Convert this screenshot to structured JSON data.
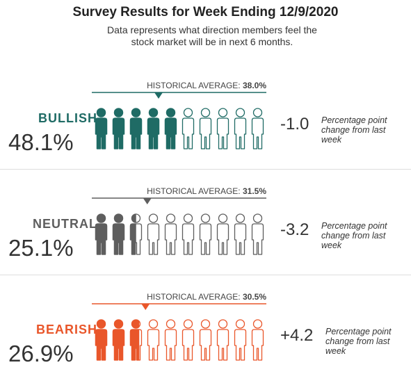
{
  "header": {
    "title": "Survey Results for Week Ending 12/9/2020",
    "subtitle": "Data represents what direction members feel the stock market will be in next 6 months."
  },
  "rows": [
    {
      "label": "BULLISH",
      "value": 48.1,
      "value_label": "48.1%",
      "color": "#1f6b65",
      "historical_label": "HISTORICAL AVERAGE:",
      "historical_average": 38.0,
      "historical_average_label": "38.0%",
      "change_label": "-1.0",
      "change_note": "Percentage point change from last week"
    },
    {
      "label": "NEUTRAL",
      "value": 25.1,
      "value_label": "25.1%",
      "color": "#5e5e5e",
      "historical_label": "HISTORICAL AVERAGE:",
      "historical_average": 31.5,
      "historical_average_label": "31.5%",
      "change_label": "-3.2",
      "change_note": "Percentage point change from last week"
    },
    {
      "label": "BEARISH",
      "value": 26.9,
      "value_label": "26.9%",
      "color": "#e9562a",
      "historical_label": "HISTORICAL AVERAGE:",
      "historical_average": 30.5,
      "historical_average_label": "30.5%",
      "change_label": "+4.2",
      "change_note": "Percentage point change from last week"
    }
  ]
}
